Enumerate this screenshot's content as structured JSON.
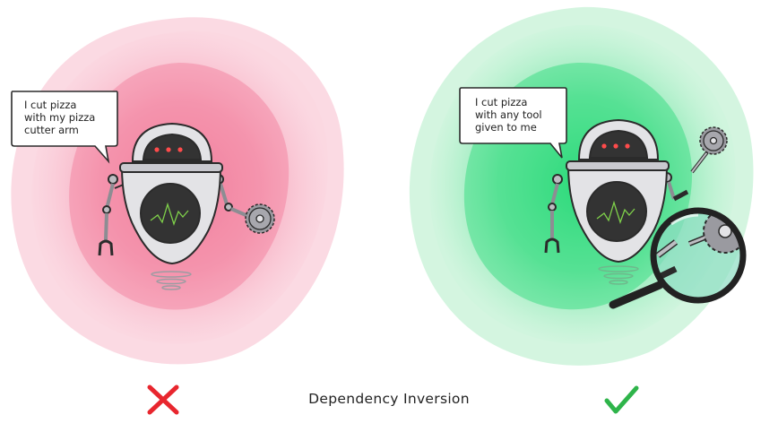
{
  "left": {
    "bubble_lines": [
      "I cut pizza",
      "with my pizza",
      "cutter arm"
    ]
  },
  "right": {
    "bubble_lines": [
      "I cut pizza",
      "with any tool",
      "given to me"
    ]
  },
  "caption": "Dependency Inversion",
  "colors": {
    "bad_blob": "#f4a0b4",
    "good_blob": "#5fe39a",
    "cross": "#e8262e",
    "check": "#2eb44a",
    "robot_body": "#e3e3e6",
    "robot_outline": "#2b2b2b",
    "screen": "#333333",
    "screen_line": "#7fd14a",
    "eye_lights": "#ff4b4b"
  },
  "icons": [
    "cross-icon",
    "check-icon",
    "magnifying-glass-icon",
    "pizza-cutter-icon"
  ]
}
